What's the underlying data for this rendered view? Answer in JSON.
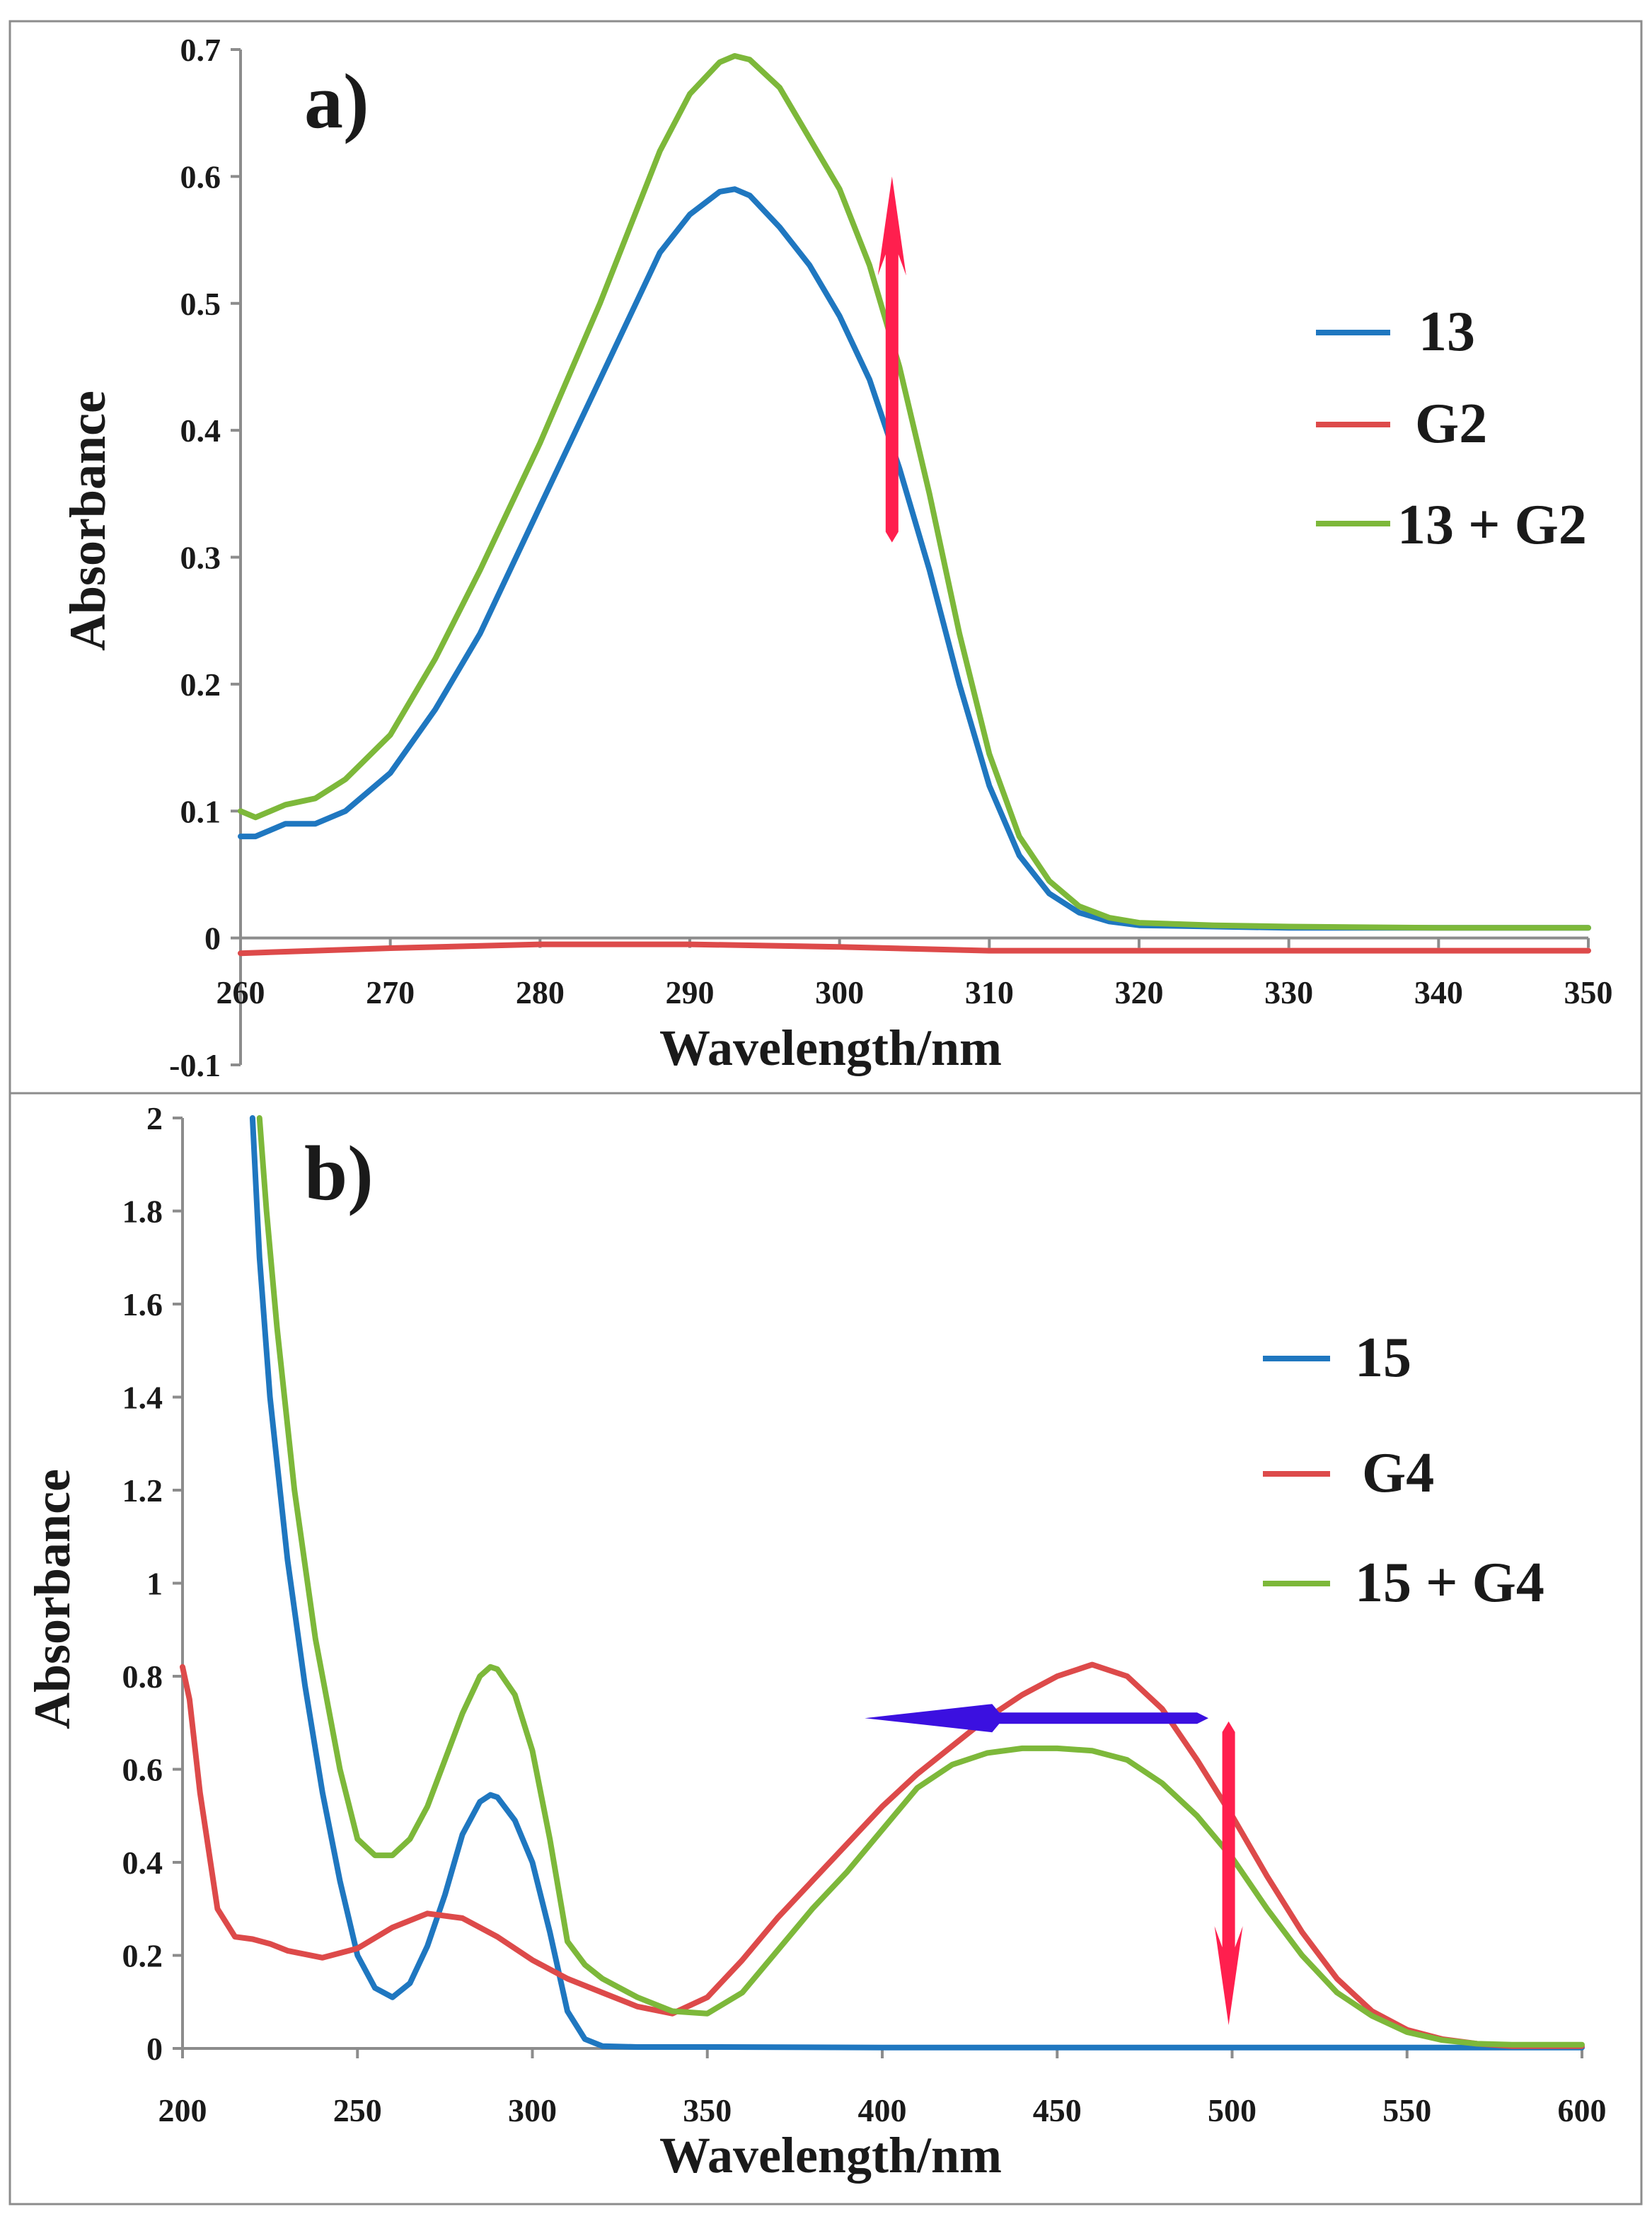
{
  "chart_data": [
    {
      "type": "line",
      "panel_label": "a)",
      "xlabel": "Wavelength/nm",
      "ylabel": "Absorbance",
      "xlim": [
        260,
        350
      ],
      "ylim": [
        -0.1,
        0.7
      ],
      "x_ticks": [
        260,
        270,
        280,
        290,
        300,
        310,
        320,
        330,
        340,
        350
      ],
      "y_ticks": [
        -0.1,
        0,
        0.1,
        0.2,
        0.3,
        0.4,
        0.5,
        0.6,
        0.7
      ],
      "y_tick_labels": [
        "-0.1",
        "0",
        "0.1",
        "0.2",
        "0.3",
        "0.4",
        "0.5",
        "0.6",
        "0.7"
      ],
      "legend_position": "right",
      "series": [
        {
          "name": "13",
          "color": "#1f77c0",
          "x": [
            260,
            261,
            262,
            263,
            265,
            267,
            270,
            273,
            276,
            280,
            284,
            288,
            290,
            292,
            293,
            294,
            296,
            298,
            300,
            302,
            304,
            306,
            308,
            310,
            312,
            314,
            316,
            318,
            320,
            325,
            330,
            340,
            350
          ],
          "y": [
            0.08,
            0.08,
            0.085,
            0.09,
            0.09,
            0.1,
            0.13,
            0.18,
            0.24,
            0.34,
            0.44,
            0.54,
            0.57,
            0.588,
            0.59,
            0.585,
            0.56,
            0.53,
            0.49,
            0.44,
            0.37,
            0.29,
            0.2,
            0.12,
            0.065,
            0.035,
            0.02,
            0.013,
            0.01,
            0.009,
            0.008,
            0.008,
            0.008
          ]
        },
        {
          "name": "G2",
          "color": "#dd4a4a",
          "x": [
            260,
            270,
            280,
            290,
            300,
            310,
            320,
            330,
            340,
            350
          ],
          "y": [
            -0.012,
            -0.008,
            -0.005,
            -0.005,
            -0.007,
            -0.01,
            -0.01,
            -0.01,
            -0.01,
            -0.01
          ]
        },
        {
          "name": "13 + G2",
          "color": "#7db83a",
          "x": [
            260,
            261,
            262,
            263,
            265,
            267,
            270,
            273,
            276,
            280,
            284,
            288,
            290,
            292,
            293,
            294,
            296,
            298,
            300,
            302,
            304,
            306,
            308,
            310,
            312,
            314,
            316,
            318,
            320,
            325,
            330,
            340,
            350
          ],
          "y": [
            0.1,
            0.095,
            0.1,
            0.105,
            0.11,
            0.125,
            0.16,
            0.22,
            0.29,
            0.39,
            0.5,
            0.62,
            0.665,
            0.69,
            0.695,
            0.692,
            0.67,
            0.63,
            0.59,
            0.53,
            0.45,
            0.35,
            0.24,
            0.145,
            0.08,
            0.045,
            0.025,
            0.016,
            0.012,
            0.01,
            0.009,
            0.008,
            0.008
          ]
        }
      ],
      "annotations": [
        {
          "type": "arrow",
          "direction": "up",
          "color": "#ff1f4e",
          "x": 303.5,
          "y_from": 0.32,
          "y_to": 0.6
        }
      ]
    },
    {
      "type": "line",
      "panel_label": "b)",
      "xlabel": "Wavelength/nm",
      "ylabel": "Absorbance",
      "xlim": [
        200,
        600
      ],
      "ylim": [
        0,
        2
      ],
      "x_ticks": [
        200,
        250,
        300,
        350,
        400,
        450,
        500,
        550,
        600
      ],
      "y_ticks": [
        0,
        0.2,
        0.4,
        0.6,
        0.8,
        1,
        1.2,
        1.4,
        1.6,
        1.8,
        2
      ],
      "y_tick_labels": [
        "0",
        "0.2",
        "0.4",
        "0.6",
        "0.8",
        "1",
        "1.2",
        "1.4",
        "1.6",
        "1.8",
        "2"
      ],
      "legend_position": "right",
      "series": [
        {
          "name": "15",
          "color": "#1f77c0",
          "x": [
            220,
            222,
            225,
            230,
            235,
            240,
            245,
            250,
            255,
            260,
            265,
            270,
            275,
            280,
            285,
            288,
            290,
            295,
            300,
            305,
            310,
            315,
            320,
            330,
            350,
            400,
            450,
            500,
            550,
            600
          ],
          "y": [
            2.0,
            1.7,
            1.4,
            1.05,
            0.78,
            0.55,
            0.36,
            0.2,
            0.13,
            0.11,
            0.14,
            0.22,
            0.33,
            0.46,
            0.53,
            0.545,
            0.54,
            0.49,
            0.4,
            0.25,
            0.08,
            0.02,
            0.005,
            0.003,
            0.003,
            0.002,
            0.002,
            0.002,
            0.002,
            0.002
          ]
        },
        {
          "name": "G4",
          "color": "#dd4a4a",
          "x": [
            200,
            202,
            205,
            210,
            215,
            220,
            225,
            230,
            240,
            250,
            260,
            270,
            280,
            290,
            300,
            310,
            320,
            330,
            340,
            350,
            360,
            370,
            380,
            390,
            400,
            410,
            420,
            430,
            440,
            450,
            460,
            470,
            480,
            490,
            500,
            510,
            520,
            530,
            540,
            550,
            560,
            570,
            580,
            590,
            600
          ],
          "y": [
            0.82,
            0.75,
            0.55,
            0.3,
            0.24,
            0.235,
            0.225,
            0.21,
            0.195,
            0.215,
            0.26,
            0.29,
            0.28,
            0.24,
            0.19,
            0.15,
            0.12,
            0.09,
            0.075,
            0.11,
            0.19,
            0.28,
            0.36,
            0.44,
            0.52,
            0.59,
            0.65,
            0.71,
            0.76,
            0.8,
            0.825,
            0.8,
            0.73,
            0.62,
            0.5,
            0.37,
            0.25,
            0.15,
            0.08,
            0.04,
            0.02,
            0.01,
            0.005,
            0.005,
            0.005
          ]
        },
        {
          "name": "15 + G4",
          "color": "#7db83a",
          "x": [
            222,
            224,
            227,
            232,
            238,
            245,
            250,
            255,
            260,
            265,
            270,
            275,
            280,
            285,
            288,
            290,
            295,
            300,
            305,
            310,
            315,
            320,
            330,
            340,
            350,
            360,
            370,
            380,
            390,
            400,
            410,
            420,
            430,
            440,
            450,
            460,
            470,
            480,
            490,
            500,
            510,
            520,
            530,
            540,
            550,
            560,
            570,
            580,
            590,
            600
          ],
          "y": [
            2.0,
            1.8,
            1.55,
            1.2,
            0.88,
            0.6,
            0.45,
            0.415,
            0.415,
            0.45,
            0.52,
            0.62,
            0.72,
            0.8,
            0.82,
            0.815,
            0.76,
            0.64,
            0.45,
            0.23,
            0.18,
            0.15,
            0.11,
            0.08,
            0.075,
            0.12,
            0.21,
            0.3,
            0.38,
            0.47,
            0.56,
            0.61,
            0.635,
            0.645,
            0.645,
            0.64,
            0.62,
            0.57,
            0.5,
            0.41,
            0.3,
            0.2,
            0.12,
            0.07,
            0.035,
            0.018,
            0.01,
            0.008,
            0.008,
            0.008
          ]
        }
      ],
      "annotations": [
        {
          "type": "arrow",
          "direction": "left",
          "color": "#3b10e0",
          "x_from": 490,
          "x_to": 395,
          "y": 0.71
        },
        {
          "type": "arrow",
          "direction": "down",
          "color": "#ff1f4e",
          "x": 499,
          "y_from": 0.68,
          "y_to": 0.05
        }
      ]
    }
  ]
}
